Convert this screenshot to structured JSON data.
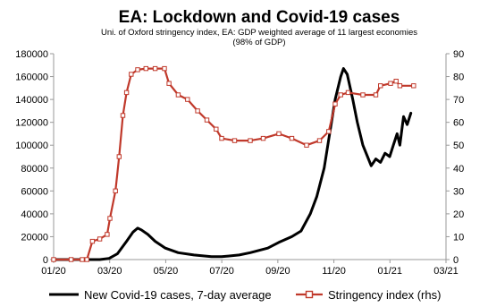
{
  "chart_data": {
    "type": "line",
    "title": "EA: Lockdown and Covid-19 cases",
    "subtitle_lines": [
      "Uni. of Oxford stringency index, EA: GDP weighted average of 11 largest economies",
      "(98% of GDP)"
    ],
    "x_ticks": [
      "01/20",
      "03/20",
      "05/20",
      "07/20",
      "09/20",
      "11/20",
      "01/21",
      "03/21"
    ],
    "x_range": [
      "2020-01-01",
      "2021-03-01"
    ],
    "y_left": {
      "range": [
        0,
        180000
      ],
      "ticks": [
        "0",
        "20000",
        "40000",
        "60000",
        "80000",
        "100000",
        "120000",
        "140000",
        "160000",
        "180000"
      ]
    },
    "y_right": {
      "range": [
        0,
        90
      ],
      "ticks": [
        "0",
        "10",
        "20",
        "30",
        "40",
        "50",
        "60",
        "70",
        "80",
        "90"
      ]
    },
    "legend_position": "bottom",
    "grid": false,
    "series": [
      {
        "name": "New Covid-19 cases, 7-day average",
        "axis": "left",
        "color": "#000000",
        "points": [
          [
            "2020-01-01",
            0
          ],
          [
            "2020-02-20",
            0
          ],
          [
            "2020-03-01",
            1000
          ],
          [
            "2020-03-10",
            5000
          ],
          [
            "2020-03-20",
            16000
          ],
          [
            "2020-03-27",
            24000
          ],
          [
            "2020-04-01",
            27500
          ],
          [
            "2020-04-05",
            26000
          ],
          [
            "2020-04-12",
            22000
          ],
          [
            "2020-04-20",
            16000
          ],
          [
            "2020-05-01",
            10000
          ],
          [
            "2020-05-15",
            6000
          ],
          [
            "2020-06-01",
            4000
          ],
          [
            "2020-06-20",
            2500
          ],
          [
            "2020-07-01",
            2500
          ],
          [
            "2020-07-20",
            4000
          ],
          [
            "2020-08-01",
            6000
          ],
          [
            "2020-08-20",
            10000
          ],
          [
            "2020-09-01",
            15000
          ],
          [
            "2020-09-15",
            20000
          ],
          [
            "2020-09-25",
            25000
          ],
          [
            "2020-10-05",
            40000
          ],
          [
            "2020-10-12",
            55000
          ],
          [
            "2020-10-20",
            80000
          ],
          [
            "2020-10-25",
            105000
          ],
          [
            "2020-11-01",
            140000
          ],
          [
            "2020-11-07",
            160000
          ],
          [
            "2020-11-10",
            167000
          ],
          [
            "2020-11-14",
            162000
          ],
          [
            "2020-11-20",
            140000
          ],
          [
            "2020-11-25",
            120000
          ],
          [
            "2020-12-01",
            100000
          ],
          [
            "2020-12-06",
            90000
          ],
          [
            "2020-12-10",
            82000
          ],
          [
            "2020-12-15",
            88000
          ],
          [
            "2020-12-20",
            85000
          ],
          [
            "2020-12-25",
            93000
          ],
          [
            "2020-12-30",
            90000
          ],
          [
            "2021-01-03",
            100000
          ],
          [
            "2021-01-07",
            110000
          ],
          [
            "2021-01-10",
            100000
          ],
          [
            "2021-01-14",
            125000
          ],
          [
            "2021-01-18",
            118000
          ],
          [
            "2021-01-22",
            128000
          ]
        ]
      },
      {
        "name": "Stringency index (rhs)",
        "axis": "right",
        "color": "#c0392b",
        "marker": "square",
        "points": [
          [
            "2020-01-01",
            0
          ],
          [
            "2020-01-20",
            0
          ],
          [
            "2020-02-01",
            0
          ],
          [
            "2020-02-06",
            0
          ],
          [
            "2020-02-12",
            8
          ],
          [
            "2020-02-20",
            9
          ],
          [
            "2020-02-28",
            11
          ],
          [
            "2020-03-02",
            18
          ],
          [
            "2020-03-08",
            30
          ],
          [
            "2020-03-12",
            45
          ],
          [
            "2020-03-16",
            63
          ],
          [
            "2020-03-20",
            73
          ],
          [
            "2020-03-25",
            81
          ],
          [
            "2020-04-01",
            83
          ],
          [
            "2020-04-10",
            83.5
          ],
          [
            "2020-04-20",
            83.5
          ],
          [
            "2020-04-30",
            83.5
          ],
          [
            "2020-05-05",
            77
          ],
          [
            "2020-05-15",
            72
          ],
          [
            "2020-05-25",
            70
          ],
          [
            "2020-06-05",
            65
          ],
          [
            "2020-06-15",
            61
          ],
          [
            "2020-06-25",
            57
          ],
          [
            "2020-07-01",
            53
          ],
          [
            "2020-07-15",
            52
          ],
          [
            "2020-08-01",
            52
          ],
          [
            "2020-08-15",
            53
          ],
          [
            "2020-09-01",
            55
          ],
          [
            "2020-09-15",
            53
          ],
          [
            "2020-10-01",
            50
          ],
          [
            "2020-10-15",
            52
          ],
          [
            "2020-10-25",
            56
          ],
          [
            "2020-11-01",
            68
          ],
          [
            "2020-11-07",
            72
          ],
          [
            "2020-11-15",
            73
          ],
          [
            "2020-12-01",
            72
          ],
          [
            "2020-12-15",
            72
          ],
          [
            "2020-12-20",
            76
          ],
          [
            "2020-12-31",
            77
          ],
          [
            "2021-01-06",
            78
          ],
          [
            "2021-01-10",
            76
          ],
          [
            "2021-01-25",
            76
          ]
        ]
      }
    ]
  }
}
